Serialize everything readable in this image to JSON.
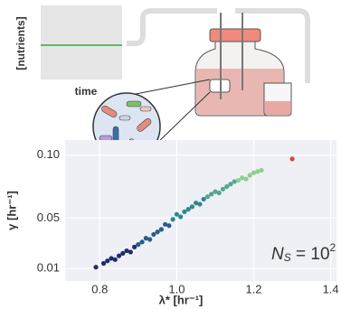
{
  "inset": {
    "ylabel": "[nutrients]",
    "xlabel": "time"
  },
  "chart_data": {
    "type": "scatter",
    "xlabel": "λ* [hr⁻¹]",
    "ylabel": "γ [hr⁻¹]",
    "annotation": {
      "base": "N",
      "subscript": "S",
      "rest": " = 10",
      "superscript": "2"
    },
    "xlim": [
      0.71,
      1.415
    ],
    "ylim": [
      0,
      0.112
    ],
    "xticks": [
      0.8,
      {
        "value": 1.0,
        "label": "1.0"
      },
      1.2,
      1.4
    ],
    "yticks": [
      0.01,
      0.05,
      {
        "value": 0.1,
        "label": "0.10"
      }
    ],
    "grid": true,
    "series": [
      {
        "color": "#1f2d6b",
        "x": [
          0.79,
          0.81,
          0.82,
          0.83,
          0.84,
          0.85,
          0.86,
          0.87,
          0.88,
          0.89
        ],
        "values": [
          0.011,
          0.014,
          0.016,
          0.018,
          0.017,
          0.02,
          0.022,
          0.024,
          0.023,
          0.027
        ]
      },
      {
        "color": "#2a5a8c",
        "x": [
          0.9,
          0.91,
          0.92,
          0.93,
          0.94,
          0.95,
          0.96,
          0.97,
          0.98
        ],
        "values": [
          0.029,
          0.031,
          0.034,
          0.033,
          0.037,
          0.039,
          0.041,
          0.045,
          0.044
        ]
      },
      {
        "color": "#2e8790",
        "x": [
          0.99,
          1.0,
          1.01,
          1.02,
          1.03,
          1.04,
          1.05,
          1.06,
          1.07
        ],
        "values": [
          0.049,
          0.053,
          0.051,
          0.055,
          0.057,
          0.059,
          0.062,
          0.061,
          0.065
        ]
      },
      {
        "color": "#55a68c",
        "x": [
          1.08,
          1.09,
          1.1,
          1.11,
          1.12,
          1.13,
          1.14,
          1.15
        ],
        "values": [
          0.067,
          0.069,
          0.071,
          0.07,
          0.073,
          0.075,
          0.077,
          0.079
        ]
      },
      {
        "color": "#8ccf8e",
        "x": [
          1.16,
          1.17,
          1.18,
          1.19,
          1.2,
          1.21,
          1.22
        ],
        "values": [
          0.08,
          0.082,
          0.081,
          0.084,
          0.086,
          0.087,
          0.088
        ]
      },
      {
        "color": "#e0443a",
        "x": [
          1.3
        ],
        "values": [
          0.097
        ]
      }
    ]
  }
}
